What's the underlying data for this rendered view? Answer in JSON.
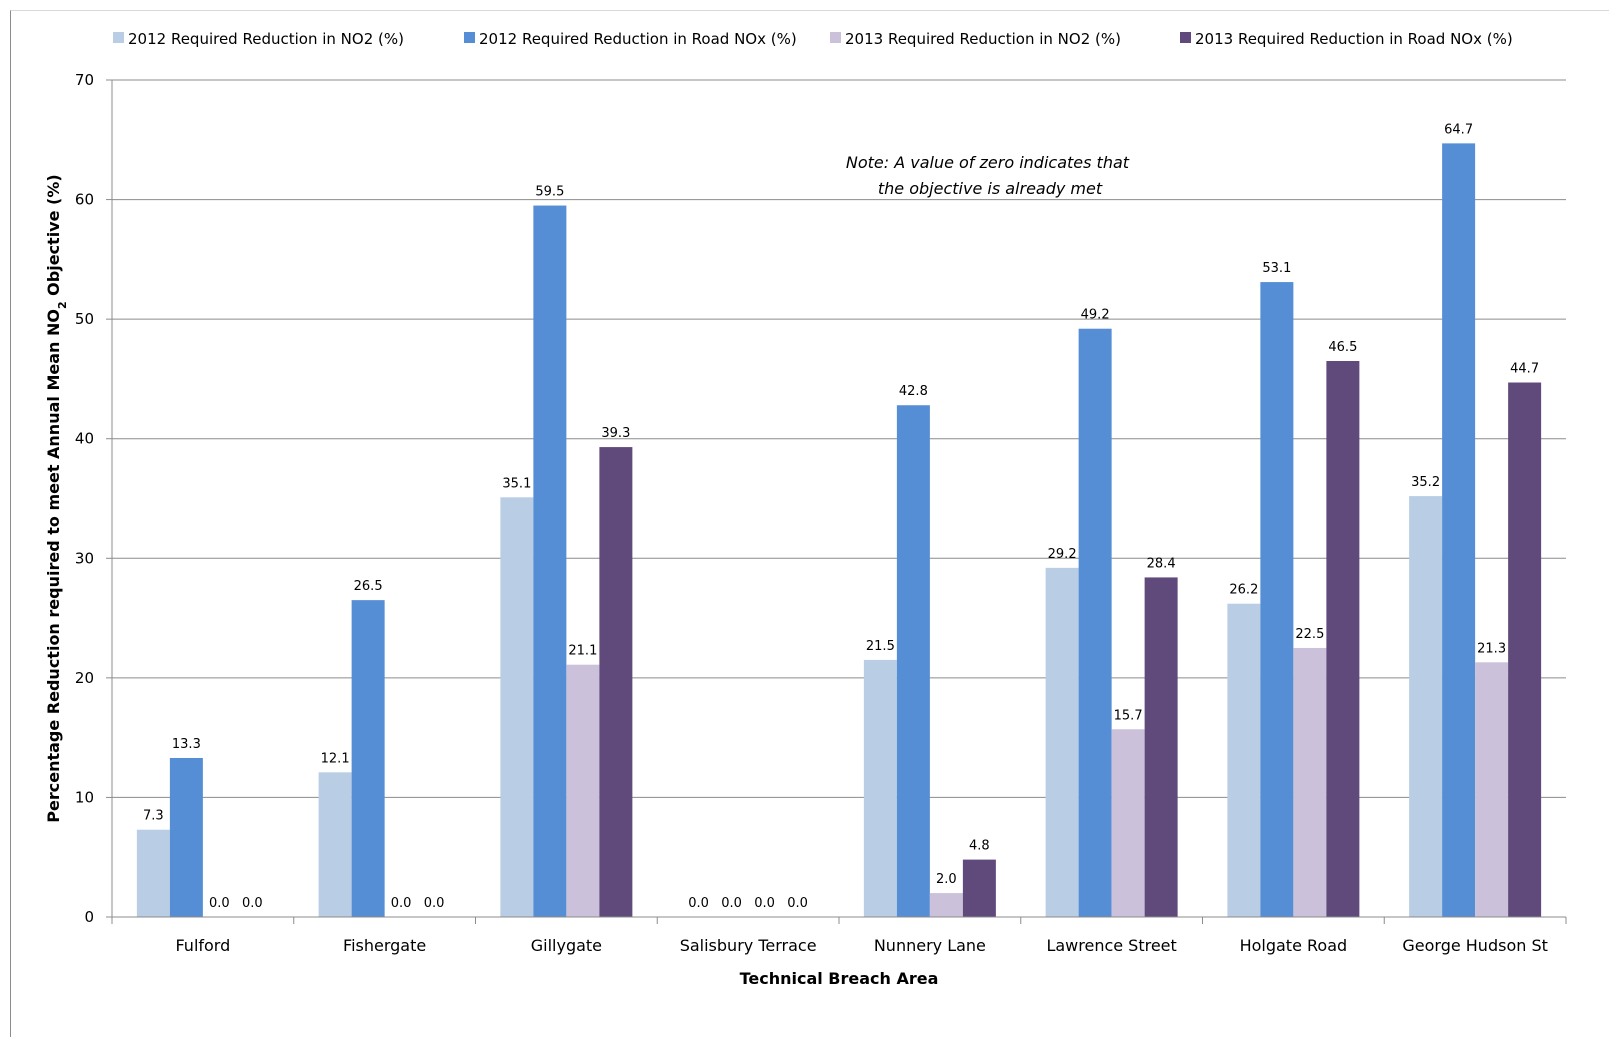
{
  "chart_data": {
    "type": "bar",
    "title": "",
    "xlabel": "Technical Breach Area",
    "ylabel_parts": [
      "Percentage Reduction required to meet Annual Mean NO",
      "2",
      " Objective (%)"
    ],
    "ylim": [
      0,
      70
    ],
    "yticks": [
      "0",
      "10",
      "20",
      "30",
      "40",
      "50",
      "60",
      "70"
    ],
    "grid": true,
    "legend_position": "top",
    "categories": [
      "Fulford",
      "Fishergate",
      "Gillygate",
      "Salisbury Terrace",
      "Nunnery Lane",
      "Lawrence Street",
      "Holgate Road",
      "George Hudson St"
    ],
    "series": [
      {
        "name": "2012 Required Reduction in NO2 (%)",
        "color": "#b9cde5",
        "values": [
          7.3,
          12.1,
          35.1,
          0.0,
          21.5,
          29.2,
          26.2,
          35.2
        ],
        "labels": [
          "7.3",
          "12.1",
          "35.1",
          "0.0",
          "21.5",
          "29.2",
          "26.2",
          "35.2"
        ]
      },
      {
        "name": "2012 Required Reduction in Road NOx (%)",
        "color": "#558ed5",
        "values": [
          13.3,
          26.5,
          59.5,
          0.0,
          42.8,
          49.2,
          53.1,
          64.7
        ],
        "labels": [
          "13.3",
          "26.5",
          "59.5",
          "0.0",
          "42.8",
          "49.2",
          "53.1",
          "64.7"
        ]
      },
      {
        "name": "2013 Required Reduction in NO2 (%)",
        "color": "#ccc1da",
        "values": [
          0.0,
          0.0,
          21.1,
          0.0,
          2.0,
          15.7,
          22.5,
          21.3
        ],
        "labels": [
          "0.0",
          "0.0",
          "21.1",
          "0.0",
          "2.0",
          "15.7",
          "22.5",
          "21.3"
        ]
      },
      {
        "name": "2013 Required Reduction in Road NOx (%)",
        "color": "#604a7b",
        "values": [
          0.0,
          0.0,
          39.3,
          0.0,
          4.8,
          28.4,
          46.5,
          44.7
        ],
        "labels": [
          "0.0",
          "0.0",
          "39.3",
          "0.0",
          "4.8",
          "28.4",
          "46.5",
          "44.7"
        ]
      }
    ],
    "annotation": [
      "Note: A value of zero indicates that",
      "the objective is already met"
    ]
  }
}
